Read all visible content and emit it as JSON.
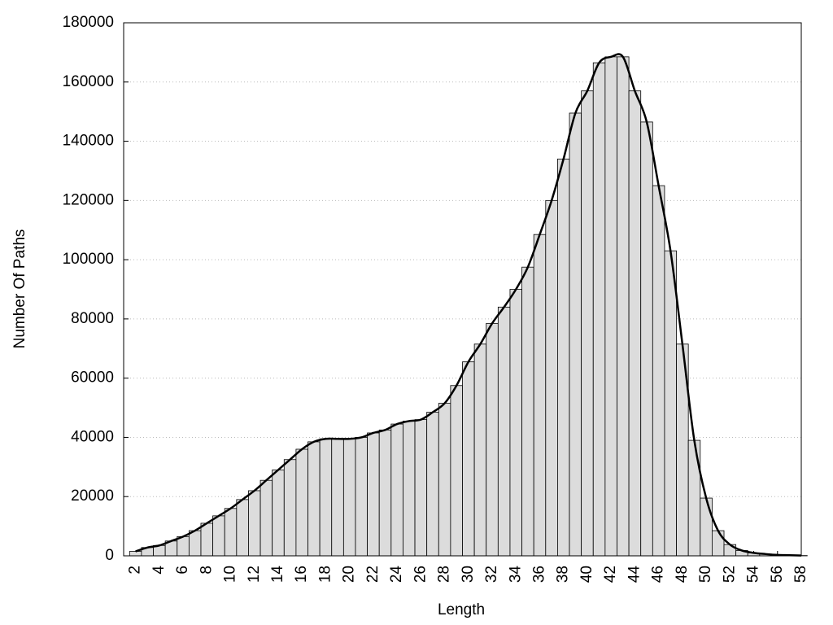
{
  "chart_data": {
    "type": "histogram",
    "x_label": "Length",
    "y_label": "Number Of Paths",
    "x": [
      2,
      3,
      4,
      5,
      6,
      7,
      8,
      9,
      10,
      11,
      12,
      13,
      14,
      15,
      16,
      17,
      18,
      19,
      20,
      21,
      22,
      23,
      24,
      25,
      26,
      27,
      28,
      29,
      30,
      31,
      32,
      33,
      34,
      35,
      36,
      37,
      38,
      39,
      40,
      41,
      42,
      43,
      44,
      45,
      46,
      47,
      48,
      49,
      50,
      51,
      52,
      53,
      54,
      55,
      56,
      57,
      58
    ],
    "values": [
      1500,
      2800,
      3500,
      5000,
      6500,
      8500,
      11000,
      13500,
      16000,
      19000,
      22000,
      25500,
      29000,
      32500,
      36000,
      38500,
      39500,
      39500,
      39500,
      40000,
      41500,
      42500,
      44500,
      45500,
      46000,
      48500,
      51500,
      57500,
      65500,
      71500,
      78500,
      84000,
      90000,
      97500,
      108500,
      120000,
      134000,
      149500,
      157000,
      166500,
      168500,
      168500,
      157000,
      146500,
      125000,
      103000,
      71500,
      39000,
      19500,
      8500,
      3800,
      1800,
      1000,
      600,
      300,
      200,
      100
    ],
    "color": "#dcdcdc",
    "line_color": "#000000",
    "xlim": [
      1,
      58
    ],
    "xticks": [
      2,
      4,
      6,
      8,
      10,
      12,
      14,
      16,
      18,
      20,
      22,
      24,
      26,
      28,
      30,
      32,
      34,
      36,
      38,
      40,
      42,
      44,
      46,
      48,
      50,
      52,
      54,
      56,
      58
    ],
    "ylim": [
      0,
      180000
    ],
    "yticks": [
      0,
      20000,
      40000,
      60000,
      80000,
      100000,
      120000,
      140000,
      160000,
      180000
    ],
    "grid": true
  }
}
